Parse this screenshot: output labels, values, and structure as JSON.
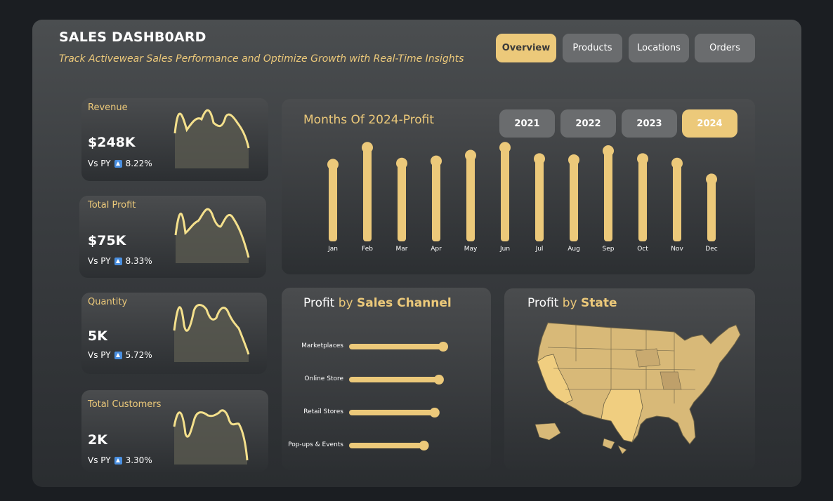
{
  "header": {
    "title": "SALES DASHB0ARD",
    "subtitle": "Track Activewear Sales Performance and Optimize Growth with Real-Time Insights"
  },
  "nav": {
    "tabs": [
      {
        "label": "Overview",
        "active": true
      },
      {
        "label": "Products",
        "active": false
      },
      {
        "label": "Locations",
        "active": false
      },
      {
        "label": "Orders",
        "active": false
      }
    ]
  },
  "kpis": [
    {
      "label": "Revenue",
      "value": "$248K",
      "vs_label": "Vs PY",
      "change": "8.22%",
      "trend": "up-icon"
    },
    {
      "label": "Total Profit",
      "value": "$75K",
      "vs_label": "Vs PY",
      "change": "8.33%",
      "trend": "up-icon"
    },
    {
      "label": "Quantity",
      "value": "5K",
      "vs_label": "Vs PY",
      "change": "5.72%",
      "trend": "up-icon"
    },
    {
      "label": "Total Customers",
      "value": "2K",
      "vs_label": "Vs PY",
      "change": "3.30%",
      "trend": "up-icon"
    }
  ],
  "monthly_chart": {
    "title": "Months Of 2024-Profit",
    "years": [
      {
        "label": "2021",
        "active": false
      },
      {
        "label": "2022",
        "active": false
      },
      {
        "label": "2023",
        "active": false
      },
      {
        "label": "2024",
        "active": true
      }
    ]
  },
  "channel_chart": {
    "title_prefix": "Profit",
    "title_by": "by",
    "title_main": "Sales Channel"
  },
  "state_map": {
    "title_prefix": "Profit",
    "title_by": "by",
    "title_main": "State",
    "icon": "usa-map-icon"
  },
  "colors": {
    "accent": "#ecc97a",
    "panel": "#3a3d40",
    "background": "#1b1e22"
  },
  "chart_data": [
    {
      "type": "bar",
      "title": "Months Of 2024-Profit",
      "categories": [
        "Jan",
        "Feb",
        "Mar",
        "Apr",
        "May",
        "Jun",
        "Jul",
        "Aug",
        "Sep",
        "Oct",
        "Nov",
        "Dec"
      ],
      "values": [
        6.8,
        8.3,
        6.9,
        7.1,
        7.6,
        8.3,
        7.3,
        7.2,
        8.0,
        7.3,
        6.9,
        5.5
      ],
      "xlabel": "",
      "ylabel": "",
      "ylim": [
        0,
        8.5
      ]
    },
    {
      "type": "bar",
      "orientation": "horizontal",
      "title": "Profit by Sales Channel",
      "categories": [
        "Marketplaces",
        "Online Store",
        "Retail Stores",
        "Pop-ups & Events"
      ],
      "values": [
        22,
        21,
        20,
        17.5
      ],
      "xlim": [
        0,
        22
      ]
    }
  ]
}
